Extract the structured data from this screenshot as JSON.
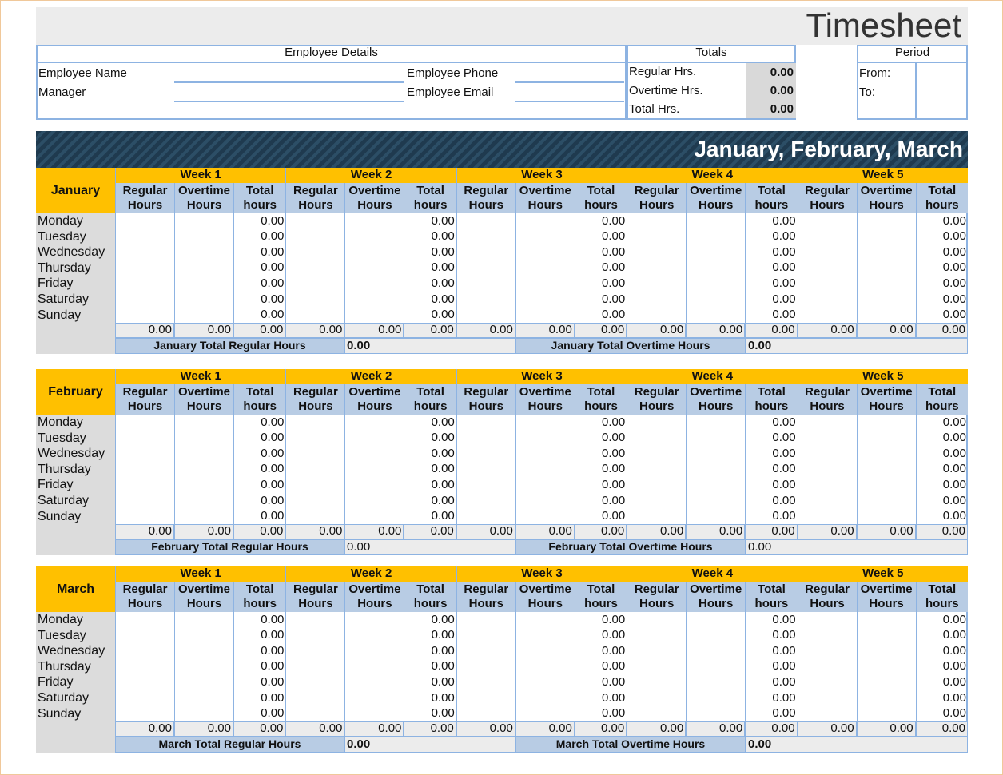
{
  "header": {
    "title": "Timesheet"
  },
  "employee_details": {
    "heading": "Employee Details",
    "fields": [
      [
        "Employee Name",
        "Employee Phone"
      ],
      [
        "Manager",
        "Employee Email"
      ]
    ]
  },
  "totals": {
    "heading": "Totals",
    "rows": [
      {
        "label": "Regular Hrs.",
        "value": "0.00"
      },
      {
        "label": "Overtime Hrs.",
        "value": "0.00"
      },
      {
        "label": "Total Hrs.",
        "value": "0.00"
      }
    ]
  },
  "period": {
    "heading": "Period",
    "labels": [
      "From:",
      "To:"
    ]
  },
  "banner": "January, February, March",
  "months": [
    {
      "name": "January",
      "weeks": [
        "Week 1",
        "Week 2",
        "Week 3",
        "Week 4",
        "Week 5"
      ],
      "column_headers": [
        "Regular Hours",
        "Overtime Hours",
        "Total hours"
      ],
      "days": [
        "Monday",
        "Tuesday",
        "Wednesday",
        "Thursday",
        "Friday",
        "Saturday",
        "Sunday"
      ],
      "day_totals": [
        [
          "0.00",
          "0.00",
          "0.00",
          "0.00",
          "0.00"
        ],
        [
          "0.00",
          "0.00",
          "0.00",
          "0.00",
          "0.00"
        ],
        [
          "0.00",
          "0.00",
          "0.00",
          "0.00",
          "0.00"
        ],
        [
          "0.00",
          "0.00",
          "0.00",
          "0.00",
          "0.00"
        ],
        [
          "0.00",
          "0.00",
          "0.00",
          "0.00",
          "0.00"
        ],
        [
          "0.00",
          "0.00",
          "0.00",
          "0.00",
          "0.00"
        ],
        [
          "0.00",
          "0.00",
          "0.00",
          "0.00",
          "0.00"
        ]
      ],
      "summary": [
        "0.00",
        "0.00",
        "0.00",
        "0.00",
        "0.00",
        "0.00",
        "0.00",
        "0.00",
        "0.00",
        "0.00",
        "0.00",
        "0.00",
        "0.00",
        "0.00",
        "0.00"
      ],
      "footer": {
        "regular_label": "January Total Regular Hours",
        "regular_value": "0.00",
        "overtime_label": "January Total Overtime Hours",
        "overtime_value": "0.00"
      }
    },
    {
      "name": "February",
      "weeks": [
        "Week 1",
        "Week 2",
        "Week 3",
        "Week 4",
        "Week 5"
      ],
      "column_headers": [
        "Regular Hours",
        "Overtime Hours",
        "Total hours"
      ],
      "days": [
        "Monday",
        "Tuesday",
        "Wednesday",
        "Thursday",
        "Friday",
        "Saturday",
        "Sunday"
      ],
      "day_totals": [
        [
          "0.00",
          "0.00",
          "0.00",
          "0.00",
          "0.00"
        ],
        [
          "0.00",
          "0.00",
          "0.00",
          "0.00",
          "0.00"
        ],
        [
          "0.00",
          "0.00",
          "0.00",
          "0.00",
          "0.00"
        ],
        [
          "0.00",
          "0.00",
          "0.00",
          "0.00",
          "0.00"
        ],
        [
          "0.00",
          "0.00",
          "0.00",
          "0.00",
          "0.00"
        ],
        [
          "0.00",
          "0.00",
          "0.00",
          "0.00",
          "0.00"
        ],
        [
          "0.00",
          "0.00",
          "0.00",
          "0.00",
          "0.00"
        ]
      ],
      "summary": [
        "0.00",
        "0.00",
        "0.00",
        "0.00",
        "0.00",
        "0.00",
        "0.00",
        "0.00",
        "0.00",
        "0.00",
        "0.00",
        "0.00",
        "0.00",
        "0.00",
        "0.00"
      ],
      "footer": {
        "regular_label": "February Total Regular Hours",
        "regular_value": "0.00",
        "overtime_label": "February Total Overtime Hours",
        "overtime_value": "0.00"
      }
    },
    {
      "name": "March",
      "weeks": [
        "Week 1",
        "Week 2",
        "Week 3",
        "Week 4",
        "Week 5"
      ],
      "column_headers": [
        "Regular Hours",
        "Overtime Hours",
        "Total hours"
      ],
      "days": [
        "Monday",
        "Tuesday",
        "Wednesday",
        "Thursday",
        "Friday",
        "Saturday",
        "Sunday"
      ],
      "day_totals": [
        [
          "0.00",
          "0.00",
          "0.00",
          "0.00",
          "0.00"
        ],
        [
          "0.00",
          "0.00",
          "0.00",
          "0.00",
          "0.00"
        ],
        [
          "0.00",
          "0.00",
          "0.00",
          "0.00",
          "0.00"
        ],
        [
          "0.00",
          "0.00",
          "0.00",
          "0.00",
          "0.00"
        ],
        [
          "0.00",
          "0.00",
          "0.00",
          "0.00",
          "0.00"
        ],
        [
          "0.00",
          "0.00",
          "0.00",
          "0.00",
          "0.00"
        ],
        [
          "0.00",
          "0.00",
          "0.00",
          "0.00",
          "0.00"
        ]
      ],
      "summary": [
        "0.00",
        "0.00",
        "0.00",
        "0.00",
        "0.00",
        "0.00",
        "0.00",
        "0.00",
        "0.00",
        "0.00",
        "0.00",
        "0.00",
        "0.00",
        "0.00",
        "0.00"
      ],
      "footer": {
        "regular_label": "March Total Regular Hours",
        "regular_value": "0.00",
        "overtime_label": "March Total Overtime Hours",
        "overtime_value": "0.00"
      }
    }
  ]
}
